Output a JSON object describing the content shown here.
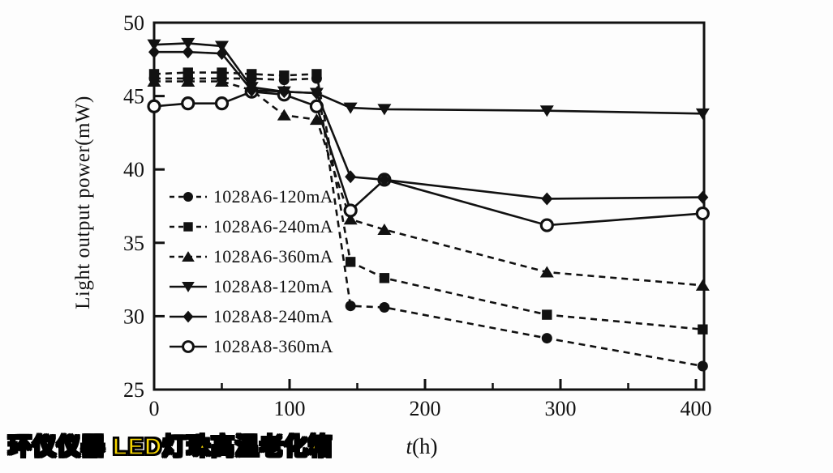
{
  "watermark": {
    "text": "环仪仪器 LED灯珠高温老化箱",
    "color": "#F5D400",
    "outline_color": "#000000"
  },
  "chart_data": {
    "type": "line",
    "title": "",
    "xlabel": "t(h)",
    "xlabel_var": "t",
    "xlabel_unit": "(h)",
    "ylabel": "Light output power(mW)",
    "xlim": [
      0,
      406
    ],
    "ylim": [
      25,
      50
    ],
    "x_ticks": [
      0,
      100,
      200,
      300,
      400
    ],
    "x_minor_ticks": [
      50,
      150,
      250,
      350
    ],
    "y_ticks": [
      25,
      30,
      35,
      40,
      45,
      50
    ],
    "grid": false,
    "legend_position": "inside-left",
    "line_color": "#111111",
    "x": [
      0,
      25,
      50,
      72,
      96,
      120,
      145,
      170,
      290,
      405
    ],
    "series": [
      {
        "name": "1028A6-120mA",
        "marker": "circle",
        "line": "dashed",
        "values": [
          46.2,
          46.2,
          46.2,
          46.2,
          46.1,
          46.2,
          30.7,
          30.6,
          28.5,
          26.6
        ]
      },
      {
        "name": "1028A6-240mA",
        "marker": "square",
        "line": "dashed",
        "values": [
          46.5,
          46.6,
          46.6,
          46.5,
          46.4,
          46.5,
          33.7,
          32.6,
          30.1,
          29.1
        ]
      },
      {
        "name": "1028A6-360mA",
        "marker": "triangle-up",
        "line": "dashed",
        "values": [
          46.0,
          46.0,
          46.0,
          45.4,
          43.7,
          43.4,
          36.6,
          35.9,
          33.0,
          32.1
        ]
      },
      {
        "name": "1028A8-120mA",
        "marker": "triangle-down",
        "line": "solid",
        "values": [
          48.5,
          48.6,
          48.4,
          45.6,
          45.3,
          45.2,
          44.2,
          44.1,
          44.0,
          43.8
        ]
      },
      {
        "name": "1028A8-240mA",
        "marker": "diamond",
        "line": "solid",
        "values": [
          48.0,
          48.0,
          47.9,
          45.4,
          45.3,
          45.2,
          39.5,
          39.3,
          38.0,
          38.1
        ]
      },
      {
        "name": "1028A8-360mA",
        "marker": "open-circle",
        "line": "solid",
        "values": [
          44.3,
          44.5,
          44.5,
          45.3,
          45.1,
          44.3,
          37.2,
          39.3,
          36.2,
          37.0
        ]
      }
    ]
  }
}
